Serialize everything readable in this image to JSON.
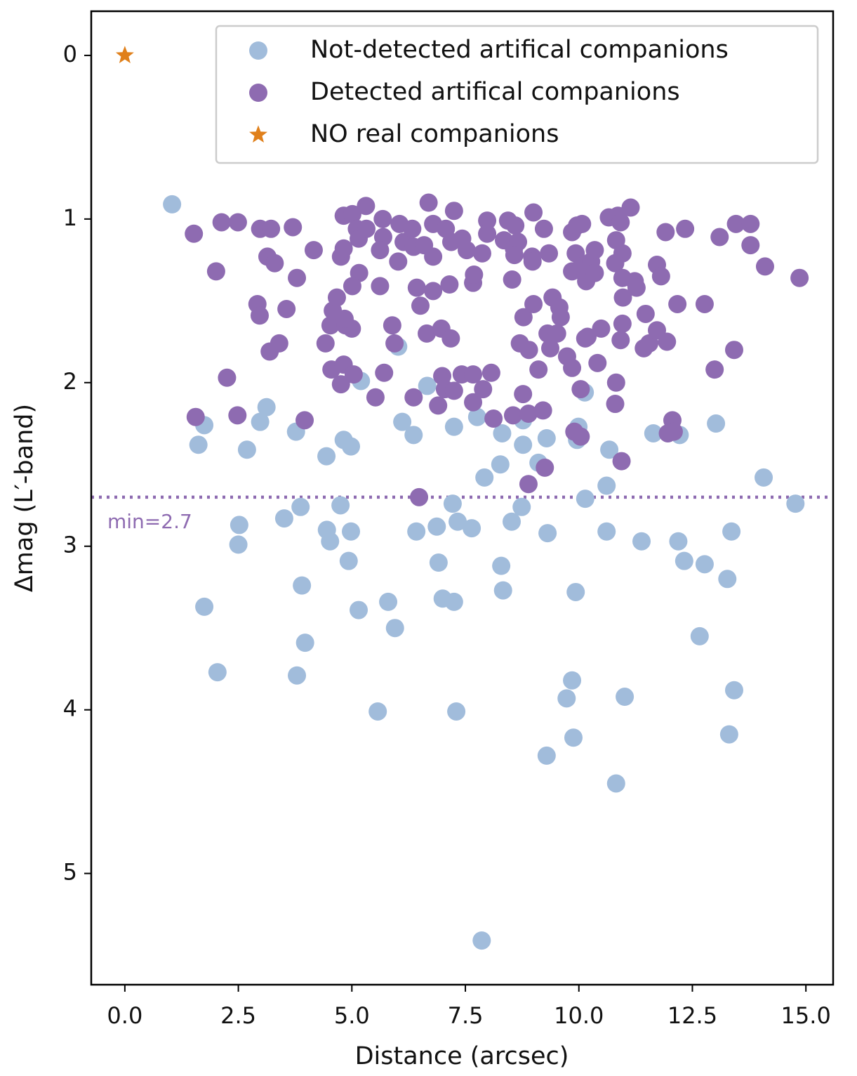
{
  "chart_data": {
    "type": "scatter",
    "xlabel": "Distance (arcsec)",
    "ylabel": "Δmag (L′-band)",
    "xlim": [
      -0.74,
      15.6
    ],
    "ylim": [
      -0.27,
      5.68
    ],
    "yinvert": true,
    "xticks": [
      {
        "value": 0,
        "label": "0.0"
      },
      2.5,
      {
        "value": 5,
        "label": "5.0"
      },
      7.5,
      {
        "value": 10,
        "label": "10.0"
      },
      12.5,
      {
        "value": 15,
        "label": "15.0"
      }
    ],
    "yticks": [
      0,
      1,
      2,
      3,
      4,
      5
    ],
    "legend": "upper right",
    "hline": {
      "value": 2.7,
      "color": "#8e6bb1",
      "label": "min=2.7"
    },
    "series": [
      {
        "name": "Not-detected artifical companions",
        "color": "#a1bcdb",
        "marker": "circle",
        "x": [
          1.04,
          1.75,
          1.62,
          1.75,
          2.04,
          2.52,
          2.5,
          2.69,
          2.98,
          3.12,
          3.51,
          3.77,
          3.87,
          3.9,
          3.97,
          3.79,
          4.44,
          4.45,
          4.52,
          4.75,
          4.82,
          4.98,
          4.98,
          4.93,
          5.15,
          5.2,
          5.57,
          5.8,
          5.95,
          6.02,
          6.11,
          6.36,
          6.42,
          6.66,
          6.87,
          6.91,
          7.0,
          7.22,
          7.25,
          7.25,
          7.3,
          7.33,
          7.64,
          7.76,
          7.86,
          7.92,
          8.27,
          8.31,
          8.29,
          8.33,
          8.52,
          8.74,
          8.77,
          8.77,
          9.11,
          9.29,
          9.31,
          9.29,
          9.73,
          9.85,
          9.88,
          9.93,
          9.96,
          9.99,
          10.13,
          10.14,
          10.61,
          10.61,
          10.67,
          10.82,
          11.01,
          11.38,
          11.64,
          12.19,
          12.22,
          12.32,
          12.66,
          12.77,
          13.02,
          13.27,
          13.36,
          13.42,
          13.31,
          14.07,
          14.77
        ],
        "values": [
          0.91,
          2.26,
          2.38,
          3.37,
          3.77,
          2.87,
          2.99,
          2.41,
          2.24,
          2.15,
          2.83,
          2.3,
          2.76,
          3.24,
          3.59,
          3.79,
          2.45,
          2.9,
          2.97,
          2.75,
          2.35,
          2.39,
          2.91,
          3.09,
          3.39,
          1.99,
          4.01,
          3.34,
          3.5,
          1.78,
          2.24,
          2.32,
          2.91,
          2.02,
          2.88,
          3.1,
          3.32,
          2.74,
          2.27,
          3.34,
          4.01,
          2.85,
          2.89,
          2.21,
          5.41,
          2.58,
          2.5,
          2.31,
          3.12,
          3.27,
          2.85,
          2.76,
          2.23,
          2.38,
          2.49,
          2.34,
          2.92,
          4.28,
          3.93,
          3.82,
          4.17,
          3.28,
          2.35,
          2.27,
          2.06,
          2.71,
          2.91,
          2.63,
          2.41,
          4.45,
          3.92,
          2.97,
          2.31,
          2.97,
          2.32,
          3.09,
          3.55,
          3.11,
          2.25,
          3.2,
          2.91,
          3.88,
          4.15,
          2.58,
          2.74
        ]
      },
      {
        "name": "Detected artifical companions",
        "color": "#8e6bb1",
        "marker": "circle",
        "x": [
          1.52,
          2.01,
          2.13,
          2.49,
          2.25,
          1.56,
          2.48,
          2.98,
          3.22,
          3.14,
          3.3,
          3.7,
          3.79,
          4.16,
          2.92,
          2.97,
          3.19,
          3.4,
          3.56,
          3.96,
          4.42,
          4.53,
          4.58,
          4.67,
          4.55,
          4.76,
          4.82,
          5.04,
          4.86,
          5.0,
          4.84,
          4.76,
          4.82,
          4.82,
          5.01,
          5.11,
          5.15,
          5.31,
          5.32,
          5.16,
          5.01,
          5.68,
          5.69,
          5.62,
          5.62,
          5.52,
          5.71,
          5.89,
          5.94,
          6.05,
          6.02,
          6.14,
          6.36,
          6.33,
          6.36,
          6.43,
          6.51,
          6.59,
          6.69,
          6.79,
          6.79,
          6.65,
          6.79,
          6.97,
          7.18,
          6.9,
          6.99,
          7.05,
          7.15,
          7.25,
          7.07,
          7.19,
          7.43,
          7.53,
          7.87,
          7.67,
          7.69,
          7.98,
          7.98,
          7.25,
          7.42,
          7.67,
          7.67,
          7.89,
          8.07,
          8.12,
          8.44,
          8.35,
          8.57,
          8.6,
          8.66,
          8.58,
          8.97,
          8.98,
          9.0,
          8.53,
          9.23,
          9.34,
          8.55,
          8.77,
          8.89,
          9.21,
          8.78,
          8.7,
          8.9,
          9.0,
          9.11,
          9.25,
          8.89,
          9.42,
          9.57,
          9.6,
          9.31,
          9.37,
          9.52,
          9.74,
          9.85,
          9.9,
          10.04,
          10.04,
          9.85,
          9.96,
          10.07,
          9.93,
          9.85,
          10.05,
          10.16,
          10.27,
          10.35,
          10.35,
          10.14,
          10.19,
          10.41,
          10.49,
          10.66,
          10.86,
          10.92,
          11.14,
          10.82,
          10.96,
          10.8,
          10.96,
          10.97,
          10.96,
          10.92,
          10.82,
          10.8,
          10.94,
          11.23,
          11.27,
          11.47,
          11.43,
          11.55,
          11.72,
          11.72,
          11.81,
          11.91,
          12.34,
          12.17,
          11.94,
          12.06,
          11.96,
          12.09,
          12.77,
          12.99,
          13.1,
          13.46,
          13.78,
          13.78,
          13.42,
          14.1,
          14.86,
          6.48
        ],
        "values": [
          1.09,
          1.32,
          1.02,
          1.02,
          1.97,
          2.21,
          2.2,
          1.06,
          1.06,
          1.23,
          1.27,
          1.05,
          1.36,
          1.19,
          1.52,
          1.59,
          1.81,
          1.76,
          1.55,
          2.23,
          1.76,
          1.65,
          1.56,
          1.48,
          1.92,
          2.01,
          1.89,
          1.95,
          1.65,
          1.67,
          1.61,
          1.23,
          1.18,
          0.98,
          0.97,
          1.06,
          1.12,
          0.92,
          1.06,
          1.33,
          1.41,
          1.0,
          1.11,
          1.19,
          1.41,
          2.09,
          1.94,
          1.65,
          1.76,
          1.03,
          1.26,
          1.14,
          2.09,
          1.06,
          1.17,
          1.42,
          1.53,
          1.16,
          0.9,
          1.03,
          1.23,
          1.7,
          1.44,
          1.67,
          1.73,
          2.14,
          1.96,
          2.04,
          1.4,
          0.95,
          1.06,
          1.14,
          1.12,
          1.19,
          1.21,
          1.39,
          1.34,
          1.01,
          1.09,
          2.05,
          1.95,
          1.95,
          2.12,
          2.04,
          1.94,
          2.22,
          1.01,
          1.13,
          1.18,
          1.04,
          1.14,
          1.22,
          1.23,
          1.26,
          0.96,
          1.37,
          1.06,
          1.21,
          2.2,
          2.07,
          2.19,
          2.17,
          1.6,
          1.76,
          1.8,
          1.52,
          1.92,
          2.52,
          2.62,
          1.48,
          1.54,
          1.6,
          1.7,
          1.79,
          1.7,
          1.84,
          1.91,
          2.3,
          2.33,
          2.04,
          1.08,
          1.04,
          1.03,
          1.21,
          1.32,
          1.29,
          1.38,
          1.26,
          1.19,
          1.33,
          1.73,
          1.72,
          1.88,
          1.67,
          0.99,
          0.98,
          1.02,
          0.93,
          1.13,
          1.21,
          1.27,
          1.36,
          1.48,
          1.64,
          1.74,
          2.0,
          2.13,
          2.48,
          1.38,
          1.42,
          1.58,
          1.79,
          1.76,
          1.68,
          1.28,
          1.35,
          1.08,
          1.06,
          1.52,
          1.75,
          2.23,
          2.31,
          2.3,
          1.52,
          1.92,
          1.11,
          1.03,
          1.03,
          1.16,
          1.8,
          1.29,
          1.36,
          2.7
        ]
      },
      {
        "name": "NO real companions",
        "color": "#e0801b",
        "marker": "star",
        "x": [
          0
        ],
        "values": [
          0
        ]
      }
    ]
  }
}
